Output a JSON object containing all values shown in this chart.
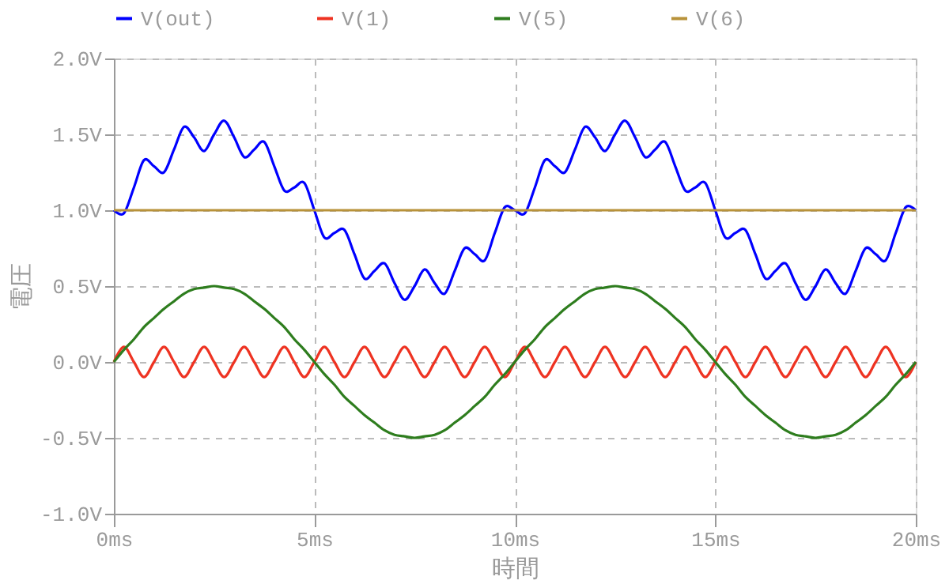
{
  "chart_data": {
    "type": "line",
    "xlabel": "時間",
    "ylabel": "電圧",
    "x": [
      0,
      0.25,
      0.5,
      0.75,
      1,
      1.25,
      1.5,
      1.75,
      2,
      2.25,
      2.5,
      2.75,
      3,
      3.25,
      3.5,
      3.75,
      4,
      4.25,
      4.5,
      4.75,
      5,
      5.25,
      5.5,
      5.75,
      6,
      6.25,
      6.5,
      6.75,
      7,
      7.25,
      7.5,
      7.75,
      8,
      8.25,
      8.5,
      8.75,
      9,
      9.25,
      9.5,
      9.75,
      10,
      10.25,
      10.5,
      10.75,
      11,
      11.25,
      11.5,
      11.75,
      12,
      12.25,
      12.5,
      12.75,
      13,
      13.25,
      13.5,
      13.75,
      14,
      14.25,
      14.5,
      14.75,
      15,
      15.25,
      15.5,
      15.75,
      16,
      16.25,
      16.5,
      16.75,
      17,
      17.25,
      17.5,
      17.75,
      18,
      18.25,
      18.5,
      18.75,
      19,
      19.25,
      19.5,
      19.75,
      20
    ],
    "series": [
      {
        "name": "V(out)",
        "color": "#0000ff",
        "values": [
          1.0,
          0.98,
          1.15,
          1.33,
          1.29,
          1.25,
          1.4,
          1.55,
          1.48,
          1.39,
          1.5,
          1.59,
          1.48,
          1.35,
          1.4,
          1.45,
          1.29,
          1.13,
          1.15,
          1.18,
          1.0,
          0.82,
          0.85,
          0.87,
          0.71,
          0.55,
          0.6,
          0.65,
          0.52,
          0.41,
          0.5,
          0.61,
          0.52,
          0.45,
          0.6,
          0.75,
          0.71,
          0.67,
          0.85,
          1.02,
          1.0,
          0.98,
          1.15,
          1.33,
          1.29,
          1.25,
          1.4,
          1.55,
          1.48,
          1.39,
          1.5,
          1.59,
          1.48,
          1.35,
          1.4,
          1.45,
          1.29,
          1.13,
          1.15,
          1.18,
          1.0,
          0.82,
          0.85,
          0.87,
          0.71,
          0.55,
          0.6,
          0.65,
          0.52,
          0.41,
          0.5,
          0.61,
          0.52,
          0.45,
          0.6,
          0.75,
          0.71,
          0.67,
          0.85,
          1.02,
          1.0
        ]
      },
      {
        "name": "V(1)",
        "color": "#ee3322",
        "values": [
          0,
          0.1,
          0,
          -0.1,
          0,
          0.1,
          0,
          -0.1,
          0,
          0.1,
          0,
          -0.1,
          0,
          0.1,
          0,
          -0.1,
          0,
          0.1,
          0,
          -0.1,
          0,
          0.1,
          0,
          -0.1,
          0,
          0.1,
          0,
          -0.1,
          0,
          0.1,
          0,
          -0.1,
          0,
          0.1,
          0,
          -0.1,
          0,
          0.1,
          0,
          -0.1,
          0,
          0.1,
          0,
          -0.1,
          0,
          0.1,
          0,
          -0.1,
          0,
          0.1,
          0,
          -0.1,
          0,
          0.1,
          0,
          -0.1,
          0,
          0.1,
          0,
          -0.1,
          0,
          0.1,
          0,
          -0.1,
          0,
          0.1,
          0,
          -0.1,
          0,
          0.1,
          0,
          -0.1,
          0,
          0.1,
          0,
          -0.1,
          0,
          0.1,
          0,
          -0.1,
          0
        ]
      },
      {
        "name": "V(5)",
        "color": "#2e7d1e",
        "values": [
          0,
          0.08,
          0.15,
          0.23,
          0.29,
          0.35,
          0.4,
          0.45,
          0.48,
          0.49,
          0.5,
          0.49,
          0.48,
          0.45,
          0.4,
          0.35,
          0.29,
          0.23,
          0.15,
          0.08,
          0,
          -0.08,
          -0.15,
          -0.23,
          -0.29,
          -0.35,
          -0.4,
          -0.45,
          -0.48,
          -0.49,
          -0.5,
          -0.49,
          -0.48,
          -0.45,
          -0.4,
          -0.35,
          -0.29,
          -0.23,
          -0.15,
          -0.08,
          0,
          0.08,
          0.15,
          0.23,
          0.29,
          0.35,
          0.4,
          0.45,
          0.48,
          0.49,
          0.5,
          0.49,
          0.48,
          0.45,
          0.4,
          0.35,
          0.29,
          0.23,
          0.15,
          0.08,
          0,
          -0.08,
          -0.15,
          -0.23,
          -0.29,
          -0.35,
          -0.4,
          -0.45,
          -0.48,
          -0.49,
          -0.5,
          -0.49,
          -0.48,
          -0.45,
          -0.4,
          -0.35,
          -0.29,
          -0.23,
          -0.15,
          -0.08,
          0
        ]
      },
      {
        "name": "V(6)",
        "color": "#b8923a",
        "values": [
          1,
          1,
          1,
          1,
          1,
          1,
          1,
          1,
          1,
          1,
          1,
          1,
          1,
          1,
          1,
          1,
          1,
          1,
          1,
          1,
          1,
          1,
          1,
          1,
          1,
          1,
          1,
          1,
          1,
          1,
          1,
          1,
          1,
          1,
          1,
          1,
          1,
          1,
          1,
          1,
          1,
          1,
          1,
          1,
          1,
          1,
          1,
          1,
          1,
          1,
          1,
          1,
          1,
          1,
          1,
          1,
          1,
          1,
          1,
          1,
          1,
          1,
          1,
          1,
          1,
          1,
          1,
          1,
          1,
          1,
          1,
          1,
          1,
          1,
          1,
          1,
          1,
          1,
          1,
          1,
          1
        ]
      }
    ],
    "xlim": [
      0,
      20
    ],
    "xticks": [
      {
        "value": 0,
        "label": "0ms"
      },
      {
        "value": 5,
        "label": "5ms"
      },
      {
        "value": 10,
        "label": "10ms"
      },
      {
        "value": 15,
        "label": "15ms"
      },
      {
        "value": 20,
        "label": "20ms"
      }
    ],
    "ylim": [
      -1,
      2
    ],
    "yticks": [
      {
        "value": -1,
        "label": "-1.0V"
      },
      {
        "value": -0.5,
        "label": "-0.5V"
      },
      {
        "value": 0,
        "label": "0.0V"
      },
      {
        "value": 0.5,
        "label": "0.5V"
      },
      {
        "value": 1,
        "label": "1.0V"
      },
      {
        "value": 1.5,
        "label": "1.5V"
      },
      {
        "value": 2,
        "label": "2.0V"
      }
    ],
    "grid": true,
    "legend": "top"
  }
}
